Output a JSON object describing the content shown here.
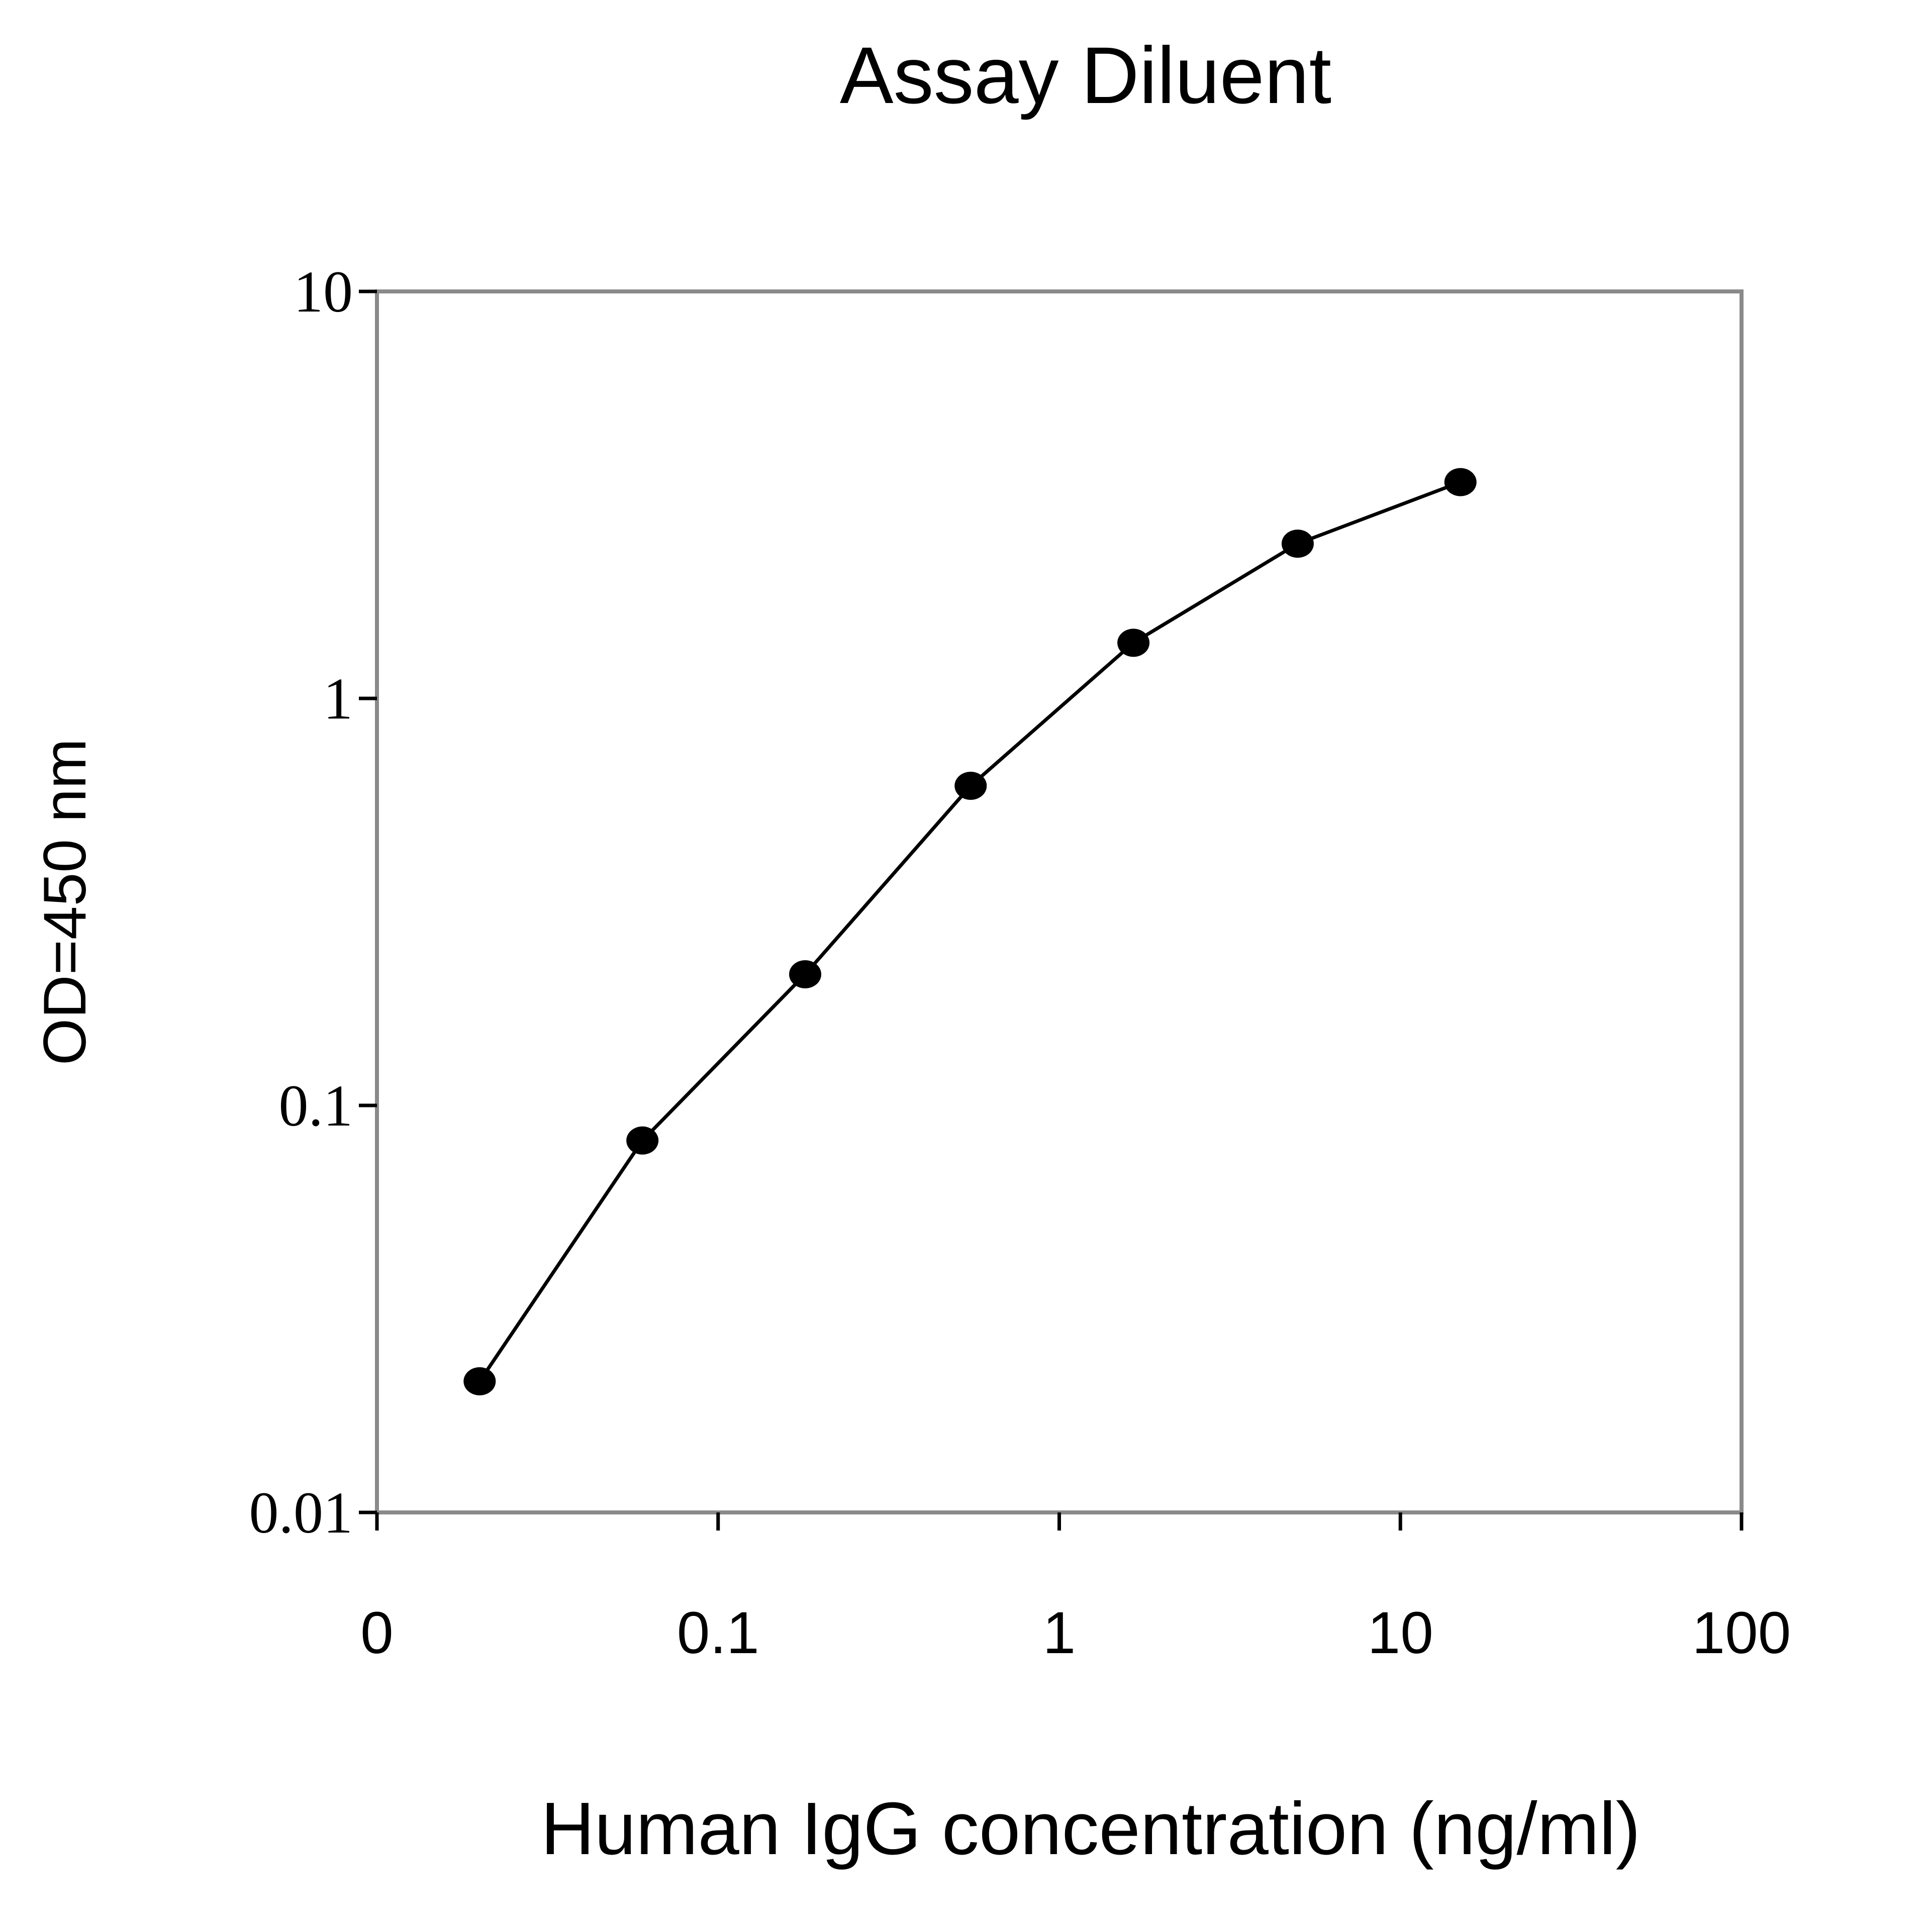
{
  "chart_data": {
    "type": "line",
    "title": "Assay Diluent",
    "xlabel": "Human IgG concentration (ng/ml)",
    "ylabel": "OD=450 nm",
    "x_scale": "log",
    "y_scale": "log",
    "xlim": [
      0.01,
      100
    ],
    "ylim": [
      0.01,
      10
    ],
    "xticks": [
      0.01,
      0.1,
      1,
      10,
      100
    ],
    "xtick_labels": [
      "0",
      "0.1",
      "1",
      "10",
      "100"
    ],
    "yticks": [
      0.01,
      0.1,
      1,
      10
    ],
    "ytick_labels": [
      "0.01",
      "0.1",
      "1",
      "10"
    ],
    "grid": false,
    "legend": "none",
    "series": [
      {
        "x": [
          0.02,
          0.06,
          0.18,
          0.55,
          1.65,
          5,
          15
        ],
        "y": [
          0.021,
          0.082,
          0.21,
          0.61,
          1.37,
          2.4,
          3.4
        ],
        "color": "#000000",
        "marker": "circle"
      }
    ]
  }
}
